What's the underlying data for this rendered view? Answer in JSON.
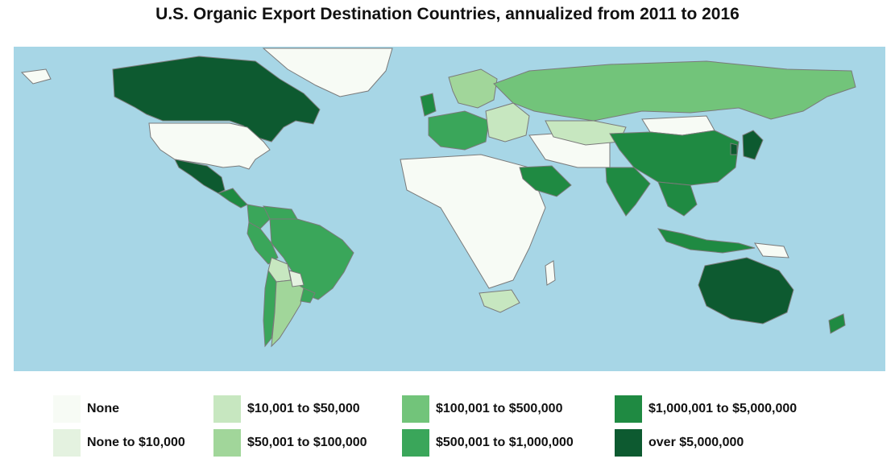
{
  "title": "U.S. Organic Export Destination Countries, annualized from 2011 to 2016",
  "colors": {
    "ocean": "#a7d6e6",
    "border": "#7a7a7a",
    "none": "#f7fbf5",
    "none_to_10k": "#e4f2e0",
    "c10k_50k": "#c7e7c0",
    "c50k_100k": "#a1d69a",
    "c100k_500k": "#72c47a",
    "c500k_1m": "#3aa65a",
    "c1m_5m": "#1f8a42",
    "over_5m": "#0d5a30"
  },
  "legend": [
    {
      "label": "None",
      "color": "#f7fbf5"
    },
    {
      "label": "None to $10,000",
      "color": "#e4f2e0"
    },
    {
      "label": "$10,001 to $50,000",
      "color": "#c7e7c0"
    },
    {
      "label": "$50,001 to $100,000",
      "color": "#a1d69a"
    },
    {
      "label": "$100,001 to $500,000",
      "color": "#72c47a"
    },
    {
      "label": "$500,001 to $1,000,000",
      "color": "#3aa65a"
    },
    {
      "label": "$1,000,001 to $5,000,000",
      "color": "#1f8a42"
    },
    {
      "label": "over $5,000,000",
      "color": "#0d5a30"
    }
  ],
  "countries": [
    {
      "name": "Canada",
      "category": "over $5,000,000"
    },
    {
      "name": "Greenland",
      "category": "None"
    },
    {
      "name": "United States",
      "category": "None"
    },
    {
      "name": "Mexico",
      "category": "over $5,000,000"
    },
    {
      "name": "Central America",
      "category": "$1,000,001 to $5,000,000"
    },
    {
      "name": "Colombia",
      "category": "$500,001 to $1,000,000"
    },
    {
      "name": "Venezuela",
      "category": "$500,001 to $1,000,000"
    },
    {
      "name": "Brazil",
      "category": "$500,001 to $1,000,000"
    },
    {
      "name": "Peru",
      "category": "$500,001 to $1,000,000"
    },
    {
      "name": "Bolivia",
      "category": "$10,001 to $50,000"
    },
    {
      "name": "Chile",
      "category": "$500,001 to $1,000,000"
    },
    {
      "name": "Argentina",
      "category": "$50,001 to $100,000"
    },
    {
      "name": "Paraguay",
      "category": "None to $10,000"
    },
    {
      "name": "Uruguay",
      "category": "$500,001 to $1,000,000"
    },
    {
      "name": "Western Europe",
      "category": "$500,001 to $1,000,000"
    },
    {
      "name": "United Kingdom",
      "category": "$1,000,001 to $5,000,000"
    },
    {
      "name": "Iceland",
      "category": "None"
    },
    {
      "name": "Scandinavia",
      "category": "$50,001 to $100,000"
    },
    {
      "name": "Eastern Europe",
      "category": "$10,001 to $50,000"
    },
    {
      "name": "Russia",
      "category": "$100,001 to $500,000"
    },
    {
      "name": "Kazakhstan",
      "category": "$10,001 to $50,000"
    },
    {
      "name": "Mongolia",
      "category": "None"
    },
    {
      "name": "China",
      "category": "$1,000,001 to $5,000,000"
    },
    {
      "name": "Japan",
      "category": "over $5,000,000"
    },
    {
      "name": "South Korea",
      "category": "over $5,000,000"
    },
    {
      "name": "India",
      "category": "$1,000,001 to $5,000,000"
    },
    {
      "name": "Saudi Arabia",
      "category": "$1,000,001 to $5,000,000"
    },
    {
      "name": "Southeast Asia",
      "category": "$1,000,001 to $5,000,000"
    },
    {
      "name": "Indonesia",
      "category": "$1,000,001 to $5,000,000"
    },
    {
      "name": "Australia",
      "category": "over $5,000,000"
    },
    {
      "name": "New Zealand",
      "category": "$1,000,001 to $5,000,000"
    },
    {
      "name": "Papua New Guinea",
      "category": "None"
    },
    {
      "name": "South Africa",
      "category": "$10,001 to $50,000"
    },
    {
      "name": "Madagascar",
      "category": "None"
    }
  ]
}
